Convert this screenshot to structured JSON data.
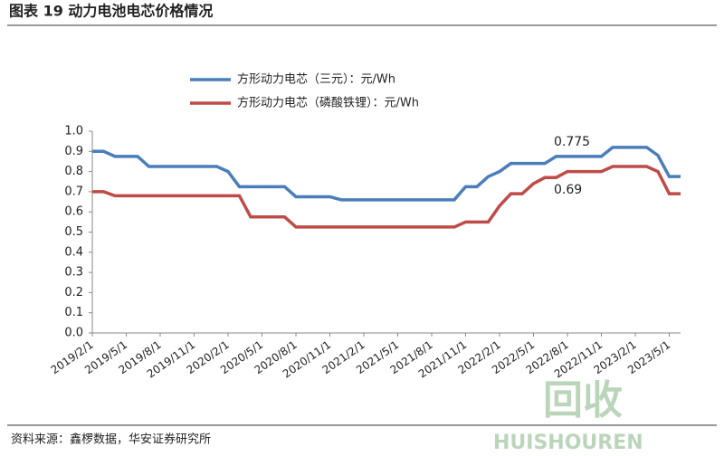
{
  "header": {
    "title": "图表 19 动力电池电芯价格情况"
  },
  "chart_data": {
    "type": "line",
    "x": [
      "2019/2/1",
      "2019/3/1",
      "2019/4/1",
      "2019/5/1",
      "2019/6/1",
      "2019/7/1",
      "2019/8/1",
      "2019/9/1",
      "2019/10/1",
      "2019/11/1",
      "2019/12/1",
      "2020/1/1",
      "2020/2/1",
      "2020/3/1",
      "2020/4/1",
      "2020/5/1",
      "2020/6/1",
      "2020/7/1",
      "2020/8/1",
      "2020/9/1",
      "2020/10/1",
      "2020/11/1",
      "2020/12/1",
      "2021/1/1",
      "2021/2/1",
      "2021/3/1",
      "2021/4/1",
      "2021/5/1",
      "2021/6/1",
      "2021/7/1",
      "2021/8/1",
      "2021/9/1",
      "2021/10/1",
      "2021/11/1",
      "2021/12/1",
      "2022/1/1",
      "2022/2/1",
      "2022/3/1",
      "2022/4/1",
      "2022/5/1",
      "2022/6/1",
      "2022/7/1",
      "2022/8/1",
      "2022/9/1",
      "2022/10/1",
      "2022/11/1",
      "2022/12/1",
      "2023/1/1",
      "2023/2/1",
      "2023/3/1",
      "2023/4/1",
      "2023/5/1",
      "2023/6/1"
    ],
    "xticks": [
      "2019/2/1",
      "2019/5/1",
      "2019/8/1",
      "2019/11/1",
      "2020/2/1",
      "2020/5/1",
      "2020/8/1",
      "2020/11/1",
      "2021/2/1",
      "2021/5/1",
      "2021/8/1",
      "2021/11/1",
      "2022/2/1",
      "2022/5/1",
      "2022/8/1",
      "2022/11/1",
      "2023/2/1",
      "2023/5/1"
    ],
    "series": [
      {
        "name": "方形动力电芯（三元）：元/Wh",
        "color": "#4a7ebb",
        "values": [
          0.9,
          0.9,
          0.875,
          0.875,
          0.875,
          0.825,
          0.825,
          0.825,
          0.825,
          0.825,
          0.825,
          0.825,
          0.8,
          0.725,
          0.725,
          0.725,
          0.725,
          0.725,
          0.675,
          0.675,
          0.675,
          0.675,
          0.66,
          0.66,
          0.66,
          0.66,
          0.66,
          0.66,
          0.66,
          0.66,
          0.66,
          0.66,
          0.66,
          0.725,
          0.725,
          0.775,
          0.8,
          0.84,
          0.84,
          0.84,
          0.84,
          0.875,
          0.875,
          0.875,
          0.875,
          0.875,
          0.92,
          0.92,
          0.92,
          0.92,
          0.88,
          0.775,
          0.775
        ]
      },
      {
        "name": "方形动力电芯（磷酸铁锂）：元/Wh",
        "color": "#be4b48",
        "values": [
          0.7,
          0.7,
          0.68,
          0.68,
          0.68,
          0.68,
          0.68,
          0.68,
          0.68,
          0.68,
          0.68,
          0.68,
          0.68,
          0.68,
          0.575,
          0.575,
          0.575,
          0.575,
          0.525,
          0.525,
          0.525,
          0.525,
          0.525,
          0.525,
          0.525,
          0.525,
          0.525,
          0.525,
          0.525,
          0.525,
          0.525,
          0.525,
          0.525,
          0.55,
          0.55,
          0.55,
          0.63,
          0.69,
          0.69,
          0.74,
          0.77,
          0.77,
          0.8,
          0.8,
          0.8,
          0.8,
          0.825,
          0.825,
          0.825,
          0.825,
          0.8,
          0.69,
          0.69
        ]
      }
    ],
    "annotations": [
      "0.775",
      "0.69"
    ],
    "ylim": [
      0,
      1
    ],
    "yticks": [
      {
        "value": 0,
        "label": "0.0"
      },
      {
        "value": 0.1,
        "label": "0.1"
      },
      {
        "value": 0.2,
        "label": "0.2"
      },
      {
        "value": 0.3,
        "label": "0.3"
      },
      {
        "value": 0.4,
        "label": "0.4"
      },
      {
        "value": 0.5,
        "label": "0.5"
      },
      {
        "value": 0.6,
        "label": "0.6"
      },
      {
        "value": 0.7,
        "label": "0.7"
      },
      {
        "value": 0.8,
        "label": "0.8"
      },
      {
        "value": 0.9,
        "label": "0.9"
      },
      {
        "value": 1,
        "label": "1.0"
      }
    ]
  },
  "footer": {
    "source": "资料来源：鑫椤数据，华安证券研究所"
  },
  "watermark": {
    "logo": "回收",
    "brand": "HUISHOUREN"
  }
}
